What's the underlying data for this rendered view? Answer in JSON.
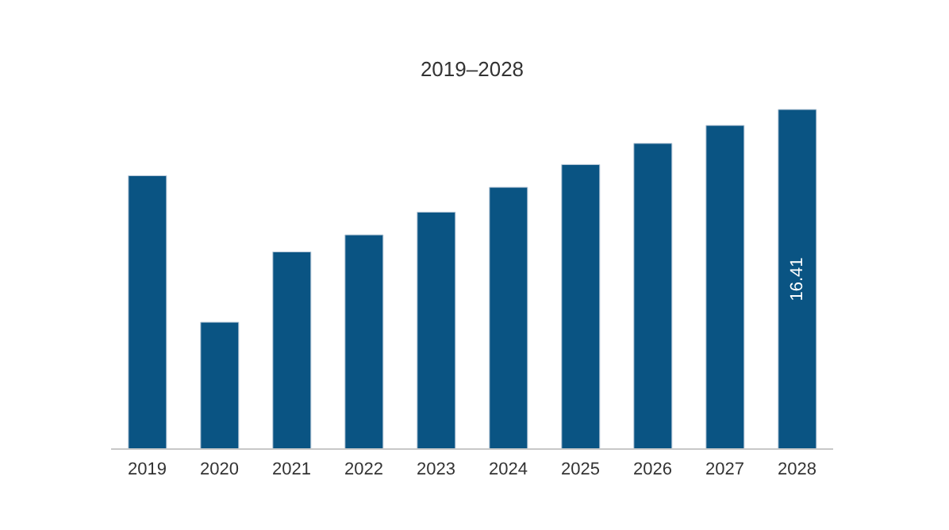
{
  "chart_data": {
    "type": "bar",
    "title": "2019–2028",
    "categories": [
      "2019",
      "2020",
      "2021",
      "2022",
      "2023",
      "2024",
      "2025",
      "2026",
      "2027",
      "2028"
    ],
    "values": [
      13.21,
      6.13,
      9.53,
      10.35,
      11.45,
      12.65,
      13.75,
      14.77,
      15.64,
      16.41
    ],
    "value_labels": [
      null,
      null,
      null,
      null,
      null,
      null,
      null,
      null,
      null,
      "16.41"
    ],
    "color": "#0a5483"
  }
}
